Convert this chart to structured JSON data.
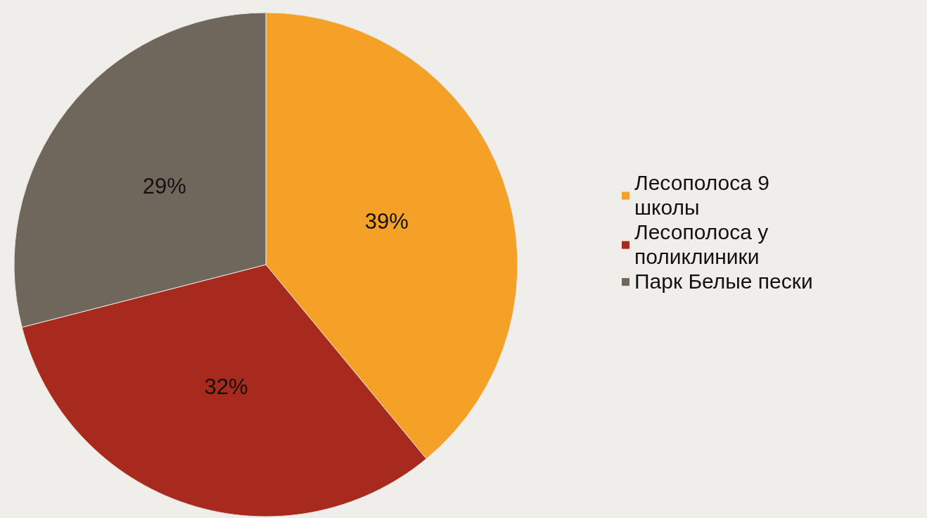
{
  "chart_data": {
    "type": "pie",
    "categories": [
      "Лесополоса 9 школы",
      "Лесополоса у поликлиники",
      "Парк Белые пески"
    ],
    "values": [
      39,
      32,
      29
    ],
    "colors": [
      "#f5a026",
      "#a8291e",
      "#6f675c"
    ],
    "value_labels": [
      "39%",
      "32%",
      "29%"
    ],
    "legend": "right"
  }
}
